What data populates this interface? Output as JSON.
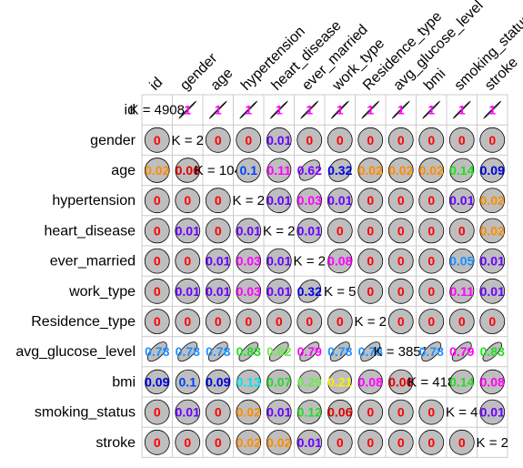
{
  "chart_data": {
    "type": "heatmap",
    "variables": [
      "id",
      "gender",
      "age",
      "hypertension",
      "heart_disease",
      "ever_married",
      "work_type",
      "Residence_type",
      "avg_glucose_level",
      "bmi",
      "smoking_status",
      "stroke"
    ],
    "diagonal": [
      "K = 4908",
      "K = 2",
      "K = 104",
      "K = 2",
      "K = 2",
      "K = 2",
      "K = 5",
      "K = 2",
      "K = 3851",
      "K = 418",
      "K = 4",
      "K = 2"
    ],
    "values": [
      [
        null,
        1,
        1,
        1,
        1,
        1,
        1,
        1,
        1,
        1,
        1,
        1
      ],
      [
        0,
        null,
        0,
        0,
        0.01,
        0,
        0,
        0,
        0,
        0,
        0,
        0
      ],
      [
        0.02,
        0.06,
        null,
        0.1,
        0.11,
        0.62,
        0.32,
        0.02,
        0.02,
        0.02,
        0.14,
        0.09
      ],
      [
        0,
        0,
        0,
        null,
        0.01,
        0.03,
        0.01,
        0,
        0,
        0,
        0.01,
        0.02
      ],
      [
        0,
        0.01,
        0,
        0.01,
        null,
        0.01,
        0,
        0,
        0,
        0,
        0,
        0.02
      ],
      [
        0,
        0,
        0.01,
        0.03,
        0.01,
        null,
        0.08,
        0,
        0,
        0,
        0.05,
        0.01
      ],
      [
        0,
        0.01,
        0.01,
        0.03,
        0.01,
        0.32,
        null,
        0,
        0,
        0,
        0.11,
        0.01
      ],
      [
        0,
        0,
        0,
        0,
        0,
        0,
        0,
        null,
        0,
        0,
        0,
        0
      ],
      [
        0.78,
        0.78,
        0.78,
        0.83,
        0.82,
        0.79,
        0.78,
        0.78,
        null,
        0.78,
        0.79,
        0.83
      ],
      [
        0.09,
        0.1,
        0.09,
        0.13,
        0.07,
        0.29,
        0.21,
        0.08,
        0.06,
        null,
        0.14,
        0.08
      ],
      [
        0,
        0.01,
        0,
        0.02,
        0.01,
        0.12,
        0.06,
        0,
        0,
        0,
        null,
        0.01
      ],
      [
        0,
        0,
        0,
        0.02,
        0.02,
        0.01,
        0,
        0,
        0,
        0,
        0,
        null
      ]
    ],
    "label_colors": {
      "0": "#ff0000",
      "0.01": "#6a00ff",
      "0.02": "#ff8c00",
      "0.03": "#ff00ff",
      "0.05": "#1e90ff",
      "0.06": "#e00000",
      "0.07": "#22dd22",
      "0.08": "#ff00ff",
      "0.09": "#0000dd",
      "0.1": "#0044ff",
      "0.11": "#ff00ff",
      "0.12": "#22dd22",
      "0.13": "#00e5e5",
      "0.14": "#22dd22",
      "0.21": "#ffee00",
      "0.29": "#66ee44",
      "0.32": "#0000dd",
      "0.62": "#7a00ff",
      "0.78": "#1e90ff",
      "0.79": "#ff00ff",
      "0.82": "#66ee44",
      "0.83": "#22dd22",
      "1": "#ff00ff"
    },
    "palette": [
      "#ff0000",
      "#ff8c00",
      "#ffee00",
      "#88ee00",
      "#22dd22",
      "#00e5a0",
      "#00e5e5",
      "#1e90ff",
      "#0000dd",
      "#6a00ff",
      "#cc00ff",
      "#ff00ff"
    ],
    "ellipse_fill": "#bebebe",
    "grid_color": "#cccccc"
  }
}
